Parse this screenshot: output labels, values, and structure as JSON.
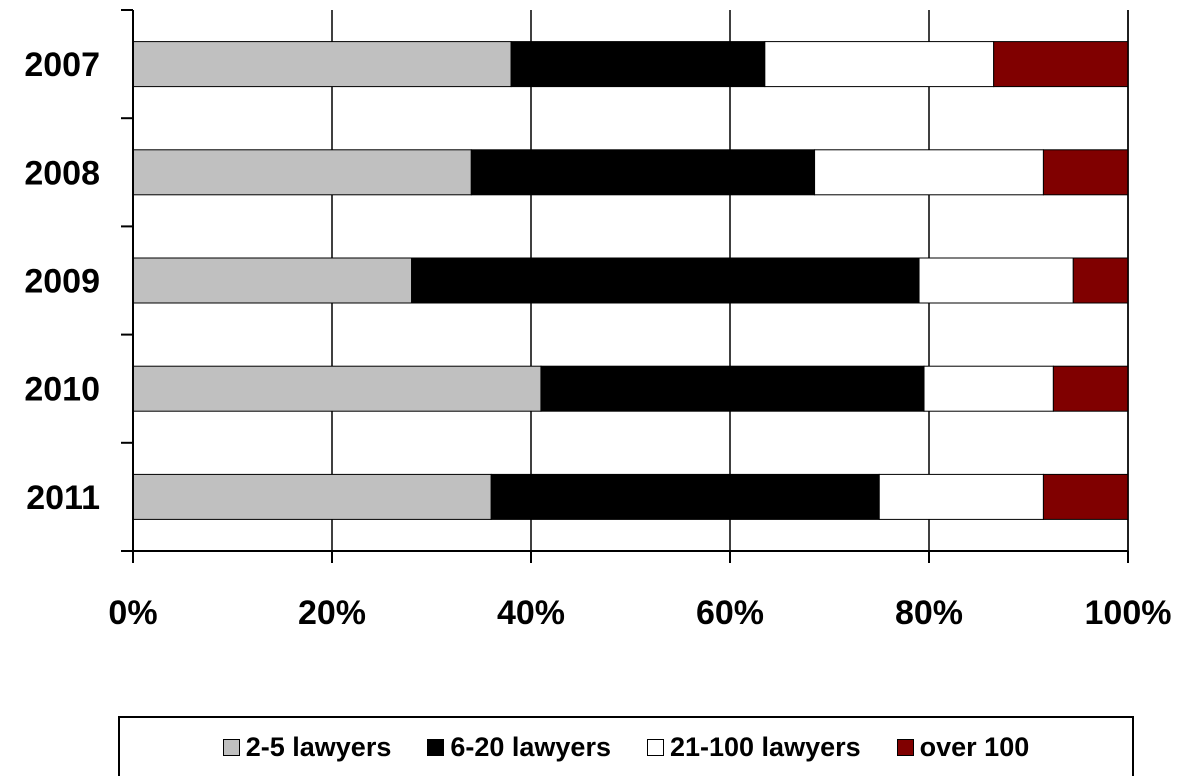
{
  "chart_data": {
    "type": "bar",
    "orientation": "horizontal",
    "stacked": true,
    "categories": [
      "2007",
      "2008",
      "2009",
      "2010",
      "2011"
    ],
    "series": [
      {
        "name": "2-5 lawyers",
        "color": "#c0c0c0",
        "values": [
          38,
          34,
          28,
          41,
          36
        ]
      },
      {
        "name": "6-20 lawyers",
        "color": "#000000",
        "values": [
          25.5,
          34.5,
          51,
          38.5,
          39
        ]
      },
      {
        "name": "21-100 lawyers",
        "color": "#ffffff",
        "values": [
          23,
          23,
          15.5,
          13,
          16.5
        ]
      },
      {
        "name": "over 100",
        "color": "#800000",
        "values": [
          13.5,
          8.5,
          5.5,
          7.5,
          8.5
        ]
      }
    ],
    "xticks": [
      "0%",
      "20%",
      "40%",
      "60%",
      "80%",
      "100%"
    ],
    "xlim": [
      0,
      100
    ],
    "grid": true,
    "legend_position": "bottom",
    "title": "",
    "xlabel": "",
    "ylabel": ""
  }
}
